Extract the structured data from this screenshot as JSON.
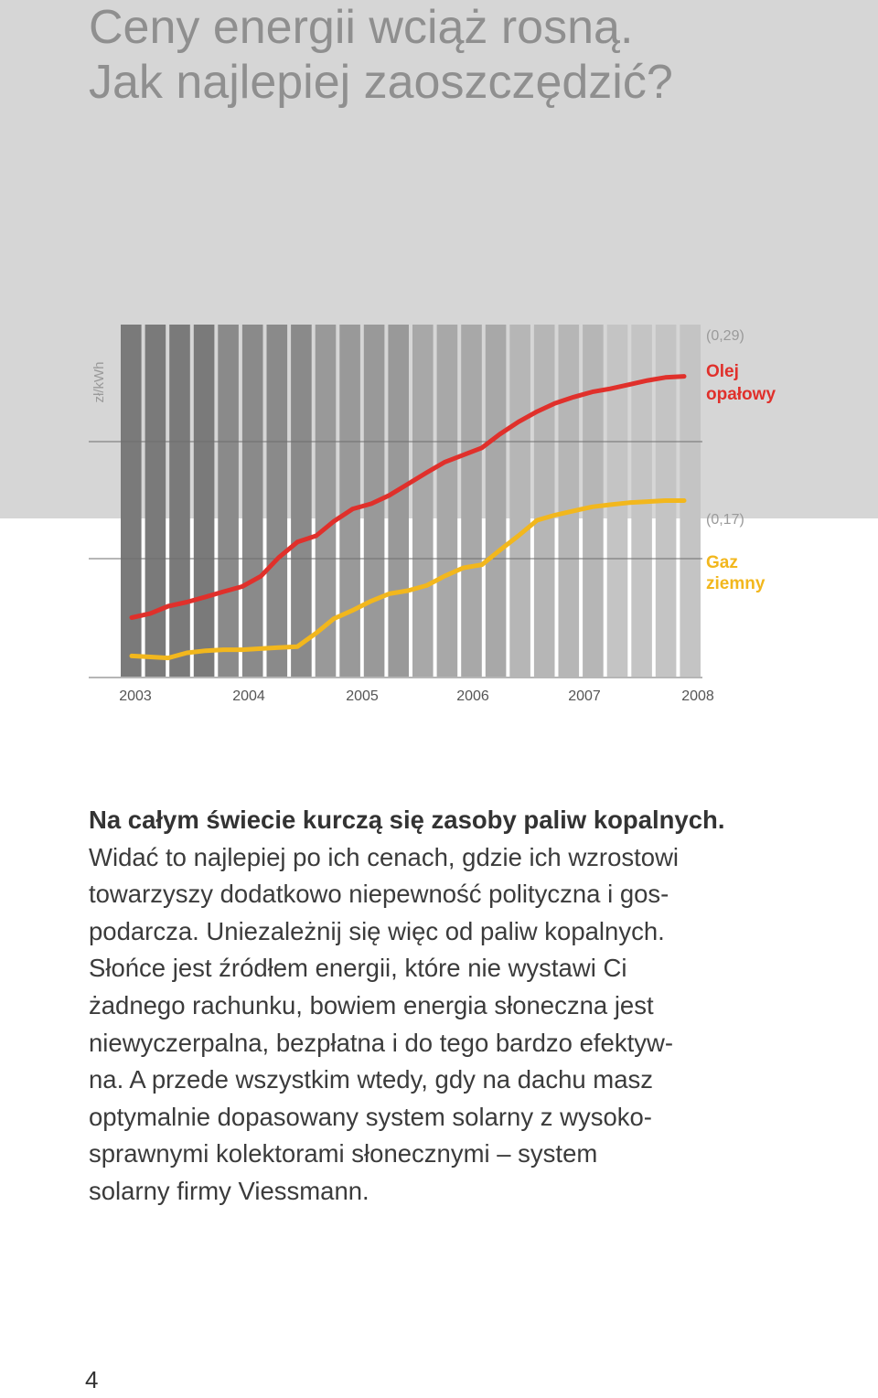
{
  "title": {
    "line1": "Ceny energii wciąż rosną.",
    "line2": "Jak najlepiej zaoszczędzić?"
  },
  "chart_data": {
    "type": "line",
    "ylabel": "zł/kWh",
    "x": [
      2003.0,
      2003.17,
      2003.33,
      2003.5,
      2003.67,
      2003.83,
      2004.0,
      2004.17,
      2004.33,
      2004.5,
      2004.67,
      2004.83,
      2005.0,
      2005.17,
      2005.33,
      2005.5,
      2005.67,
      2005.83,
      2006.0,
      2006.17,
      2006.33,
      2006.5,
      2006.67,
      2006.83,
      2007.0,
      2007.17,
      2007.33,
      2007.5,
      2007.67,
      2007.83,
      2008.0
    ],
    "xticks": [
      "2003",
      "2004",
      "2005",
      "2006",
      "2007",
      "2008"
    ],
    "ylim": [
      0,
      0.34
    ],
    "series": [
      {
        "name": "Olej opałowy",
        "name_lines": [
          "Olej",
          "opałowy"
        ],
        "end_label": "(0,29)",
        "color": "#e0302b",
        "values": [
          0.057,
          0.061,
          0.068,
          0.072,
          0.077,
          0.082,
          0.087,
          0.097,
          0.115,
          0.13,
          0.136,
          0.15,
          0.162,
          0.167,
          0.175,
          0.186,
          0.197,
          0.207,
          0.214,
          0.221,
          0.234,
          0.246,
          0.256,
          0.264,
          0.27,
          0.275,
          0.278,
          0.282,
          0.286,
          0.289,
          0.29
        ]
      },
      {
        "name": "Gaz ziemny",
        "name_lines": [
          "Gaz",
          "ziemny"
        ],
        "end_label": "(0,17)",
        "color": "#f2b71d",
        "values": [
          0.02,
          0.019,
          0.018,
          0.023,
          0.025,
          0.026,
          0.026,
          0.027,
          0.028,
          0.029,
          0.042,
          0.056,
          0.064,
          0.073,
          0.08,
          0.083,
          0.088,
          0.097,
          0.105,
          0.108,
          0.122,
          0.136,
          0.151,
          0.156,
          0.16,
          0.164,
          0.166,
          0.168,
          0.169,
          0.17,
          0.17
        ]
      }
    ],
    "grid": true,
    "legend": "right"
  },
  "body": {
    "lead": "Na całym świecie kurczą się zasoby paliw kopalnych.",
    "lines": [
      "Widać to najlepiej po ich cenach, gdzie ich wzrostowi",
      "towarzyszy dodatkowo niepewność polityczna i gos-",
      "podarcza. Uniezależnij się więc od paliw kopalnych.",
      "Słońce jest źródłem energii, które nie wystawi Ci",
      "żadnego rachunku, bowiem energia słoneczna jest",
      "niewyczerpalna, bezpłatna i do tego bardzo efektyw-",
      "na. A przede wszystkim wtedy, gdy na dachu masz",
      "optymalnie dopasowany system solarny z wysoko-",
      "sprawnymi kolektorami słonecznymi – system",
      "solarny firmy Viessmann."
    ]
  },
  "page_number": "4"
}
